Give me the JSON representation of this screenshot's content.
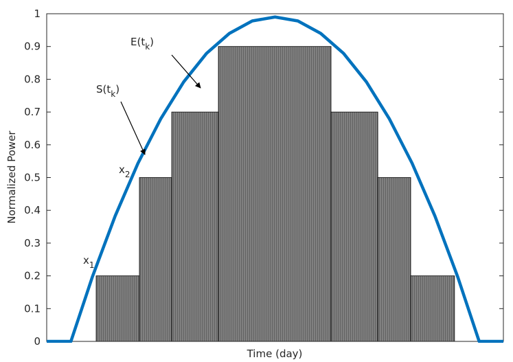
{
  "chart_data": {
    "type": "line",
    "xlabel": "Time (day)",
    "ylabel": "Normalized Power",
    "x": [
      0,
      5.3,
      10,
      15,
      20,
      25,
      30,
      35,
      40,
      45,
      50,
      55,
      60,
      65,
      70,
      75,
      80,
      85,
      90,
      94.7,
      100
    ],
    "series": [
      {
        "name": "S(t)",
        "color": "#0072bd",
        "values": [
          0,
          0,
          0.197,
          0.383,
          0.544,
          0.68,
          0.792,
          0.879,
          0.94,
          0.978,
          0.99,
          0.978,
          0.94,
          0.879,
          0.792,
          0.68,
          0.544,
          0.383,
          0.197,
          0,
          0
        ]
      }
    ],
    "steps": {
      "color": "#808080",
      "bins": [
        10.83,
        20.3,
        27.37,
        37.6,
        62.26,
        72.5,
        79.7,
        89.3
      ],
      "values": [
        0.2,
        0.5,
        0.7,
        0.9,
        0.7,
        0.5,
        0.2
      ]
    },
    "xlim": [
      0,
      100
    ],
    "ylim": [
      0,
      1
    ],
    "yticks": [
      0,
      0.1,
      0.2,
      0.3,
      0.4,
      0.5,
      0.6,
      0.7,
      0.8,
      0.9,
      1
    ],
    "annotations": [
      {
        "text": "E(t",
        "subscript": "k",
        "text_end": ")"
      },
      {
        "text": "S(t",
        "subscript": "k",
        "text_end": ")"
      },
      {
        "text": "x",
        "subscript": "2"
      },
      {
        "text": "x",
        "subscript": "1"
      }
    ]
  }
}
